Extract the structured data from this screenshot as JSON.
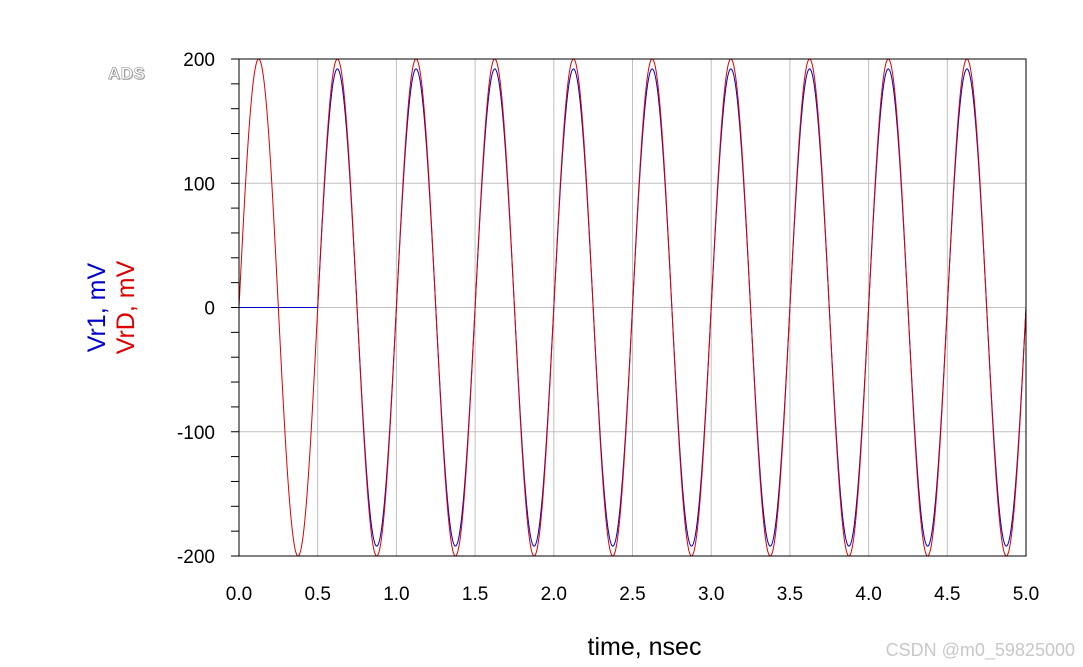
{
  "logo_text": "ADS",
  "watermark": "CSDN @m0_59825000",
  "chart_data": {
    "type": "line",
    "title": "",
    "xlabel": "time, nsec",
    "ylabel_parts": [
      {
        "text": "Vr1, mV",
        "color": "#0000cc"
      },
      {
        "text": "VrD, mV",
        "color": "#dd0000"
      }
    ],
    "xlim": [
      0.0,
      5.0
    ],
    "ylim": [
      -200,
      200
    ],
    "x_ticks": [
      "0.0",
      "0.5",
      "1.0",
      "1.5",
      "2.0",
      "2.5",
      "3.0",
      "3.5",
      "4.0",
      "4.5",
      "5.0"
    ],
    "y_ticks": [
      "200",
      "100",
      "0",
      "-100",
      "-200"
    ],
    "grid": true,
    "series": [
      {
        "name": "Vr1",
        "color": "#0000cc",
        "function": "sine",
        "amplitude": 192,
        "frequency_ghz": 2.0,
        "start_ns": 0.5,
        "value_before_start": 0
      },
      {
        "name": "VrD",
        "color": "#dd0000",
        "function": "sine",
        "amplitude": 200,
        "frequency_ghz": 2.0,
        "start_ns": 0.0
      }
    ]
  }
}
